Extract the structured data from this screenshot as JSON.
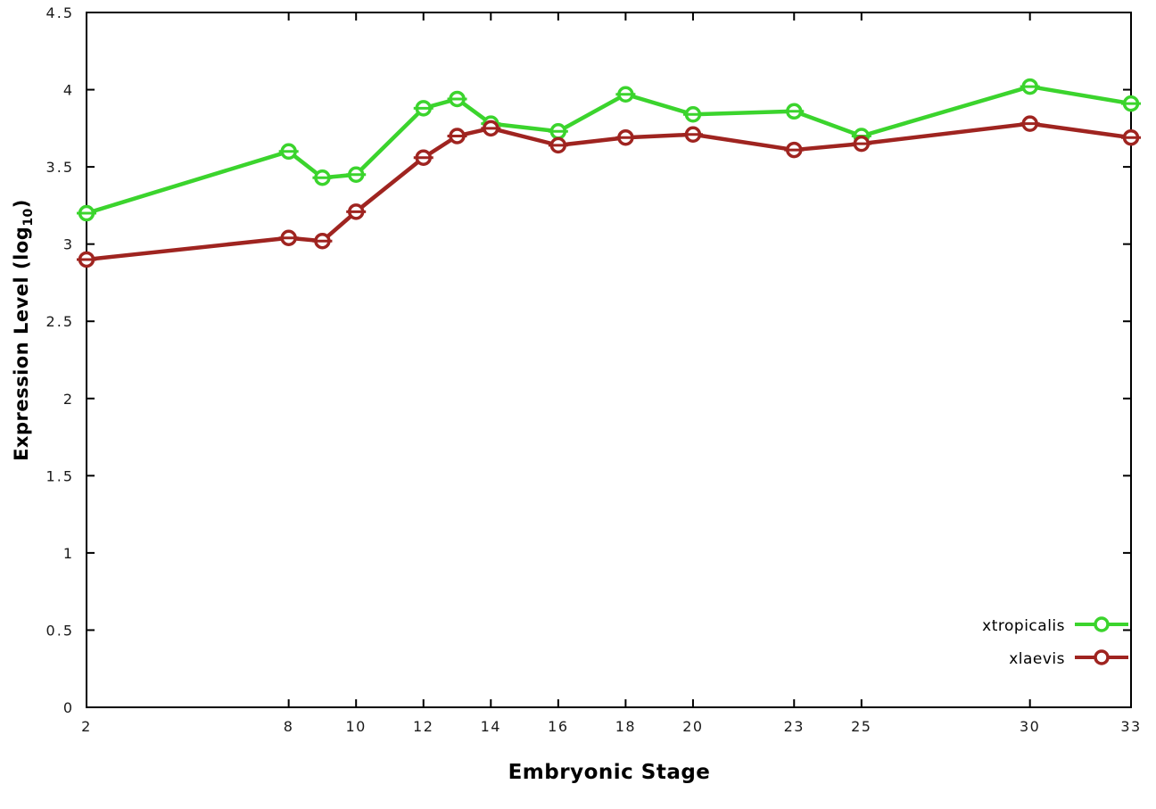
{
  "chart_data": {
    "type": "line",
    "title": "",
    "xlabel": "Embryonic Stage",
    "ylabel": "Expression Level (log10)",
    "ylabel_parts": {
      "prefix": "Expression Level (log",
      "sub": "10",
      "suffix": ")"
    },
    "xlim": [
      2,
      33
    ],
    "ylim": [
      0,
      4.5
    ],
    "grid": false,
    "marker_style": "open-circle-with-yerrorbar",
    "legend_position": "bottom-right-inside",
    "axis_color": "#000000",
    "background_color": "#ffffff",
    "xticks": {
      "values": [
        2,
        8,
        10,
        12,
        14,
        16,
        18,
        20,
        23,
        25,
        30,
        33
      ],
      "labels": [
        "2",
        "8",
        "10",
        "12",
        "14",
        "16",
        "18",
        "20",
        "23",
        "25",
        "30",
        "33"
      ]
    },
    "yticks": {
      "values": [
        0,
        0.5,
        1,
        1.5,
        2,
        2.5,
        3,
        3.5,
        4,
        4.5
      ],
      "labels": [
        "0",
        "0.5",
        "1",
        "1.5",
        "2",
        "2.5",
        "3",
        "3.5",
        "4",
        "4.5"
      ]
    },
    "x": [
      2,
      8,
      9,
      10,
      12,
      13,
      14,
      16,
      18,
      20,
      23,
      25,
      30,
      33
    ],
    "series": [
      {
        "name": "xtropicalis",
        "color": "#3bd42d",
        "values": [
          3.2,
          3.6,
          3.43,
          3.45,
          3.88,
          3.94,
          3.78,
          3.73,
          3.97,
          3.84,
          3.86,
          3.7,
          4.02,
          3.91
        ]
      },
      {
        "name": "xlaevis",
        "color": "#9f2420",
        "values": [
          2.9,
          3.04,
          3.02,
          3.21,
          3.56,
          3.7,
          3.75,
          3.64,
          3.69,
          3.71,
          3.61,
          3.65,
          3.78,
          3.69
        ]
      }
    ]
  }
}
